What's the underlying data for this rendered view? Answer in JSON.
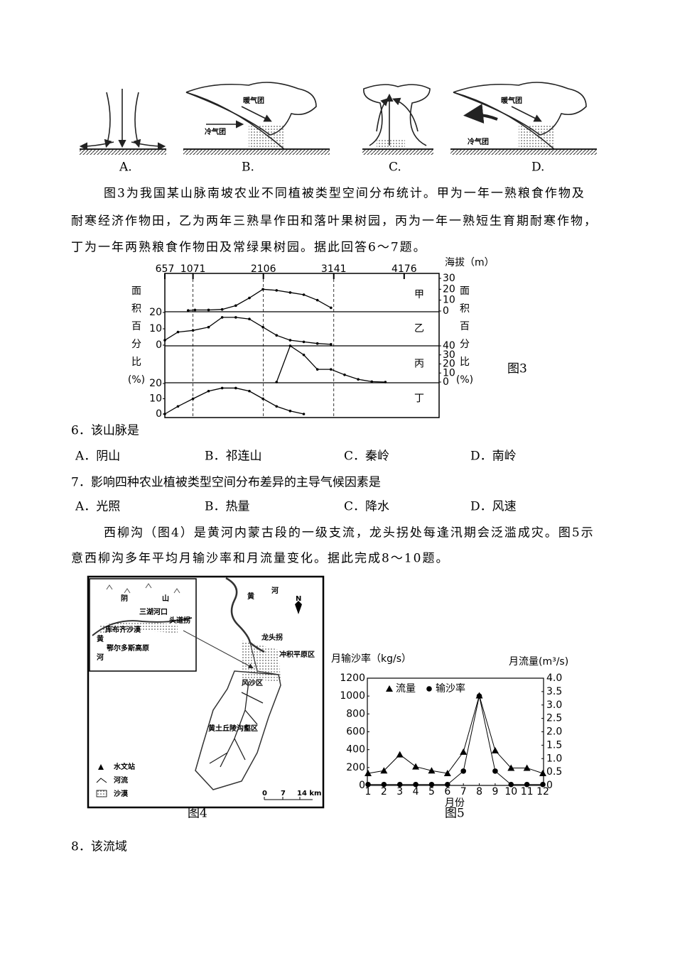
{
  "weather_diagrams": [
    {
      "option": "A."
    },
    {
      "option": "B.",
      "warm": "暖气团",
      "cold": "冷气团"
    },
    {
      "option": "C."
    },
    {
      "option": "D.",
      "warm": "暖气团",
      "cold": "冷气团"
    }
  ],
  "intro_1": [
    "图3为我国某山脉南坡农业不同植被类型空间分布统计。甲为一年一熟粮食作物及",
    "耐寒经济作物田，乙为两年三熟旱作田和落叶果树园，丙为一年一熟短生育期耐寒作物，",
    "丁为一年两熟粮食作物田及常绿果树园。据此回答6～7题。"
  ],
  "questions": [
    {
      "stem": "6．该山脉是",
      "options": [
        "A．阴山",
        "B．祁连山",
        "C．秦岭",
        "D．南岭"
      ]
    },
    {
      "stem": "7．影响四种农业植被类型空间分布差异的主导气候因素是",
      "options": [
        "A．光照",
        "B．热量",
        "C．降水",
        "D．风速"
      ]
    }
  ],
  "intro_2": [
    "西柳沟（图4）是黄河内蒙古段的一级支流，龙头拐处每逢汛期会泛滥成灾。图5示",
    "意西柳沟多年平均月输沙率和月流量变化。据此完成8～10题。"
  ],
  "figure_4": {
    "inset_labels": [
      "阴",
      "山",
      "三湖河口",
      "头道拐",
      "库布齐沙漠",
      "黄",
      "鄂尔多斯高原",
      "河"
    ],
    "labels": [
      "黄",
      "河",
      "N",
      "龙头拐",
      "冲积平原区",
      "风沙区",
      "黄土丘陵沟壑区"
    ],
    "legend": [
      "水文站",
      "河流",
      "沙漠"
    ],
    "scale": [
      "0",
      "7",
      "14 km"
    ],
    "caption": "图4"
  },
  "question_8": "8．该流域",
  "chart_data": [
    {
      "type": "line",
      "x_label": "海拔（m）",
      "xlim": [
        657,
        4690
      ],
      "xticks": [
        657,
        1071,
        2106,
        3141,
        4176
      ],
      "y_label": [
        "面",
        "积",
        "百",
        "分",
        "比",
        "(%)"
      ],
      "caption": "图3",
      "color": "#000000",
      "panels": [
        {
          "name": "甲",
          "axis_side": "right",
          "ylim": [
            0,
            30
          ],
          "yticks": [
            0,
            10,
            20,
            30
          ],
          "x": [
            1000,
            1100,
            1300,
            1500,
            1700,
            1900,
            2100,
            2300,
            2500,
            2700,
            2900,
            3100
          ],
          "values": [
            0.5,
            1,
            1,
            1.5,
            5,
            12,
            20,
            19,
            17,
            15,
            10,
            3
          ]
        },
        {
          "name": "乙",
          "axis_side": "left",
          "ylim": [
            0,
            20
          ],
          "yticks": [
            0,
            10,
            20
          ],
          "x": [
            657,
            850,
            1071,
            1300,
            1500,
            1700,
            1900,
            2100,
            2300,
            2500,
            2700,
            2900,
            3100
          ],
          "values": [
            3,
            8,
            9,
            11,
            17,
            17,
            16,
            11,
            6,
            3,
            2,
            1,
            0.5
          ]
        },
        {
          "name": "丙",
          "axis_side": "right",
          "ylim": [
            0,
            40
          ],
          "yticks": [
            0,
            10,
            20,
            30,
            40
          ],
          "x": [
            2300,
            2500,
            2700,
            2900,
            3100,
            3300,
            3500,
            3700,
            3900
          ],
          "values": [
            0,
            40,
            30,
            14,
            14,
            8,
            3,
            0.5,
            0
          ]
        },
        {
          "name": "丁",
          "axis_side": "left",
          "ylim": [
            0,
            20
          ],
          "yticks": [
            0,
            10,
            20
          ],
          "x": [
            657,
            850,
            1071,
            1300,
            1500,
            1700,
            1900,
            2100,
            2300,
            2500,
            2700
          ],
          "values": [
            0,
            5,
            10,
            15,
            17,
            17,
            15,
            10,
            5,
            2,
            0
          ]
        }
      ]
    },
    {
      "type": "line",
      "caption": "图5",
      "x_label": "月份",
      "y_label": "月输沙率（kg/s）",
      "y2_label": "月流量(m³/s)",
      "x": [
        1,
        2,
        3,
        4,
        5,
        6,
        7,
        8,
        9,
        10,
        11,
        12
      ],
      "xlim": [
        1,
        12
      ],
      "xticks": [
        1,
        2,
        3,
        4,
        5,
        6,
        7,
        8,
        9,
        10,
        11,
        12
      ],
      "ylim": [
        0,
        1200
      ],
      "yticks": [
        0,
        200,
        400,
        600,
        800,
        1000,
        1200
      ],
      "y2lim": [
        0,
        4
      ],
      "y2ticks": [
        0,
        0.5,
        {
          "value": 1,
          "label": "1.0"
        },
        1.5,
        {
          "value": 2,
          "label": "2.0"
        },
        2.5,
        {
          "value": 3,
          "label": "3.0"
        },
        3.5,
        {
          "value": 4,
          "label": "4.0"
        }
      ],
      "series": [
        {
          "name": "流量",
          "color": "#000000",
          "marker": "triangle",
          "axis": "y2",
          "values": [
            0.45,
            0.55,
            1.15,
            0.7,
            0.55,
            0.45,
            1.25,
            3.35,
            1.3,
            0.65,
            0.65,
            0.45
          ]
        },
        {
          "name": "输沙率",
          "color": "#000000",
          "marker": "circle",
          "values": [
            10,
            10,
            10,
            10,
            10,
            10,
            160,
            1000,
            160,
            10,
            10,
            10
          ]
        }
      ]
    }
  ]
}
